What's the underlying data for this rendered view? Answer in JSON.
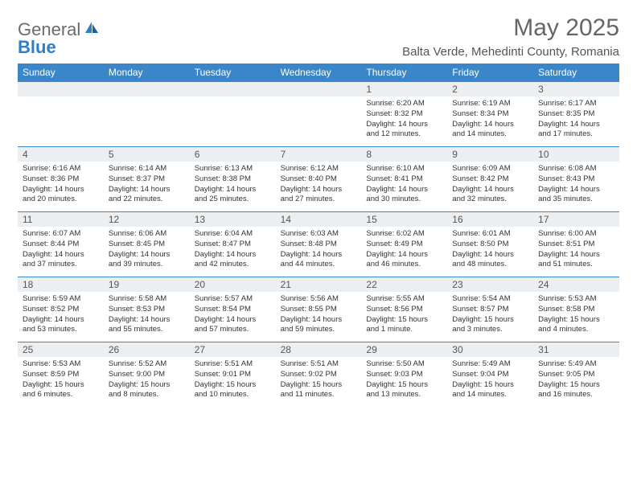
{
  "brand": {
    "general": "General",
    "blue": "Blue"
  },
  "title": {
    "month": "May 2025",
    "location": "Balta Verde, Mehedinti County, Romania"
  },
  "weekdays": [
    "Sunday",
    "Monday",
    "Tuesday",
    "Wednesday",
    "Thursday",
    "Friday",
    "Saturday"
  ],
  "colors": {
    "header_bg": "#3a86c8",
    "header_text": "#ffffff",
    "daynum_bg": "#eceff1",
    "border": "#3a86c8",
    "text": "#333333",
    "logo_general": "#6b6b6b",
    "logo_blue": "#2b7fc9"
  },
  "weeks": [
    [
      {
        "n": "",
        "sr": "",
        "ss": "",
        "dl1": "",
        "dl2": ""
      },
      {
        "n": "",
        "sr": "",
        "ss": "",
        "dl1": "",
        "dl2": ""
      },
      {
        "n": "",
        "sr": "",
        "ss": "",
        "dl1": "",
        "dl2": ""
      },
      {
        "n": "",
        "sr": "",
        "ss": "",
        "dl1": "",
        "dl2": ""
      },
      {
        "n": "1",
        "sr": "Sunrise: 6:20 AM",
        "ss": "Sunset: 8:32 PM",
        "dl1": "Daylight: 14 hours",
        "dl2": "and 12 minutes."
      },
      {
        "n": "2",
        "sr": "Sunrise: 6:19 AM",
        "ss": "Sunset: 8:34 PM",
        "dl1": "Daylight: 14 hours",
        "dl2": "and 14 minutes."
      },
      {
        "n": "3",
        "sr": "Sunrise: 6:17 AM",
        "ss": "Sunset: 8:35 PM",
        "dl1": "Daylight: 14 hours",
        "dl2": "and 17 minutes."
      }
    ],
    [
      {
        "n": "4",
        "sr": "Sunrise: 6:16 AM",
        "ss": "Sunset: 8:36 PM",
        "dl1": "Daylight: 14 hours",
        "dl2": "and 20 minutes."
      },
      {
        "n": "5",
        "sr": "Sunrise: 6:14 AM",
        "ss": "Sunset: 8:37 PM",
        "dl1": "Daylight: 14 hours",
        "dl2": "and 22 minutes."
      },
      {
        "n": "6",
        "sr": "Sunrise: 6:13 AM",
        "ss": "Sunset: 8:38 PM",
        "dl1": "Daylight: 14 hours",
        "dl2": "and 25 minutes."
      },
      {
        "n": "7",
        "sr": "Sunrise: 6:12 AM",
        "ss": "Sunset: 8:40 PM",
        "dl1": "Daylight: 14 hours",
        "dl2": "and 27 minutes."
      },
      {
        "n": "8",
        "sr": "Sunrise: 6:10 AM",
        "ss": "Sunset: 8:41 PM",
        "dl1": "Daylight: 14 hours",
        "dl2": "and 30 minutes."
      },
      {
        "n": "9",
        "sr": "Sunrise: 6:09 AM",
        "ss": "Sunset: 8:42 PM",
        "dl1": "Daylight: 14 hours",
        "dl2": "and 32 minutes."
      },
      {
        "n": "10",
        "sr": "Sunrise: 6:08 AM",
        "ss": "Sunset: 8:43 PM",
        "dl1": "Daylight: 14 hours",
        "dl2": "and 35 minutes."
      }
    ],
    [
      {
        "n": "11",
        "sr": "Sunrise: 6:07 AM",
        "ss": "Sunset: 8:44 PM",
        "dl1": "Daylight: 14 hours",
        "dl2": "and 37 minutes."
      },
      {
        "n": "12",
        "sr": "Sunrise: 6:06 AM",
        "ss": "Sunset: 8:45 PM",
        "dl1": "Daylight: 14 hours",
        "dl2": "and 39 minutes."
      },
      {
        "n": "13",
        "sr": "Sunrise: 6:04 AM",
        "ss": "Sunset: 8:47 PM",
        "dl1": "Daylight: 14 hours",
        "dl2": "and 42 minutes."
      },
      {
        "n": "14",
        "sr": "Sunrise: 6:03 AM",
        "ss": "Sunset: 8:48 PM",
        "dl1": "Daylight: 14 hours",
        "dl2": "and 44 minutes."
      },
      {
        "n": "15",
        "sr": "Sunrise: 6:02 AM",
        "ss": "Sunset: 8:49 PM",
        "dl1": "Daylight: 14 hours",
        "dl2": "and 46 minutes."
      },
      {
        "n": "16",
        "sr": "Sunrise: 6:01 AM",
        "ss": "Sunset: 8:50 PM",
        "dl1": "Daylight: 14 hours",
        "dl2": "and 48 minutes."
      },
      {
        "n": "17",
        "sr": "Sunrise: 6:00 AM",
        "ss": "Sunset: 8:51 PM",
        "dl1": "Daylight: 14 hours",
        "dl2": "and 51 minutes."
      }
    ],
    [
      {
        "n": "18",
        "sr": "Sunrise: 5:59 AM",
        "ss": "Sunset: 8:52 PM",
        "dl1": "Daylight: 14 hours",
        "dl2": "and 53 minutes."
      },
      {
        "n": "19",
        "sr": "Sunrise: 5:58 AM",
        "ss": "Sunset: 8:53 PM",
        "dl1": "Daylight: 14 hours",
        "dl2": "and 55 minutes."
      },
      {
        "n": "20",
        "sr": "Sunrise: 5:57 AM",
        "ss": "Sunset: 8:54 PM",
        "dl1": "Daylight: 14 hours",
        "dl2": "and 57 minutes."
      },
      {
        "n": "21",
        "sr": "Sunrise: 5:56 AM",
        "ss": "Sunset: 8:55 PM",
        "dl1": "Daylight: 14 hours",
        "dl2": "and 59 minutes."
      },
      {
        "n": "22",
        "sr": "Sunrise: 5:55 AM",
        "ss": "Sunset: 8:56 PM",
        "dl1": "Daylight: 15 hours",
        "dl2": "and 1 minute."
      },
      {
        "n": "23",
        "sr": "Sunrise: 5:54 AM",
        "ss": "Sunset: 8:57 PM",
        "dl1": "Daylight: 15 hours",
        "dl2": "and 3 minutes."
      },
      {
        "n": "24",
        "sr": "Sunrise: 5:53 AM",
        "ss": "Sunset: 8:58 PM",
        "dl1": "Daylight: 15 hours",
        "dl2": "and 4 minutes."
      }
    ],
    [
      {
        "n": "25",
        "sr": "Sunrise: 5:53 AM",
        "ss": "Sunset: 8:59 PM",
        "dl1": "Daylight: 15 hours",
        "dl2": "and 6 minutes."
      },
      {
        "n": "26",
        "sr": "Sunrise: 5:52 AM",
        "ss": "Sunset: 9:00 PM",
        "dl1": "Daylight: 15 hours",
        "dl2": "and 8 minutes."
      },
      {
        "n": "27",
        "sr": "Sunrise: 5:51 AM",
        "ss": "Sunset: 9:01 PM",
        "dl1": "Daylight: 15 hours",
        "dl2": "and 10 minutes."
      },
      {
        "n": "28",
        "sr": "Sunrise: 5:51 AM",
        "ss": "Sunset: 9:02 PM",
        "dl1": "Daylight: 15 hours",
        "dl2": "and 11 minutes."
      },
      {
        "n": "29",
        "sr": "Sunrise: 5:50 AM",
        "ss": "Sunset: 9:03 PM",
        "dl1": "Daylight: 15 hours",
        "dl2": "and 13 minutes."
      },
      {
        "n": "30",
        "sr": "Sunrise: 5:49 AM",
        "ss": "Sunset: 9:04 PM",
        "dl1": "Daylight: 15 hours",
        "dl2": "and 14 minutes."
      },
      {
        "n": "31",
        "sr": "Sunrise: 5:49 AM",
        "ss": "Sunset: 9:05 PM",
        "dl1": "Daylight: 15 hours",
        "dl2": "and 16 minutes."
      }
    ]
  ]
}
